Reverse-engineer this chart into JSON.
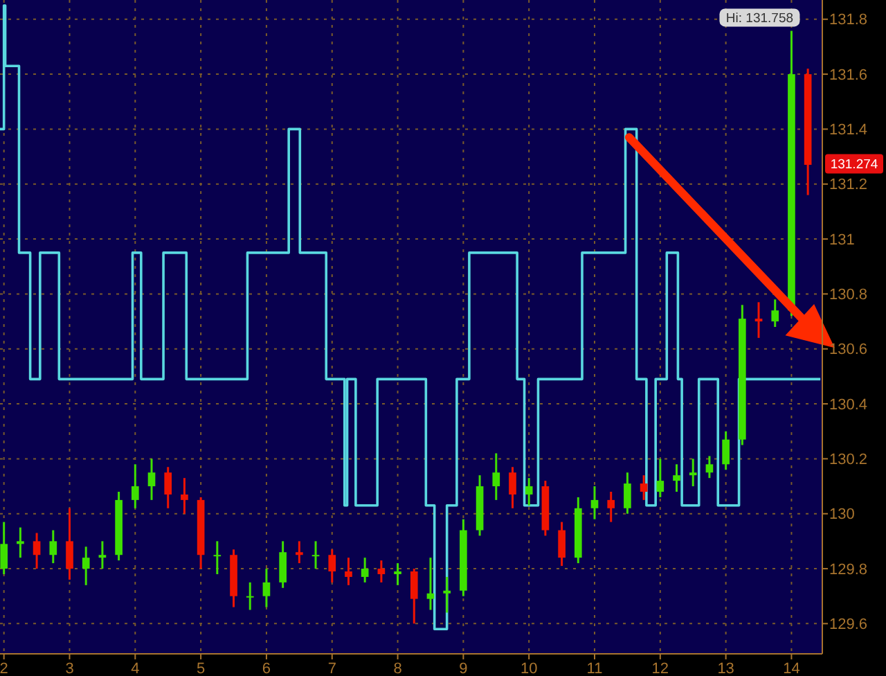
{
  "chart_data": {
    "type": "candlestick",
    "x": [
      2,
      2.25,
      2.5,
      2.75,
      3,
      3.25,
      3.5,
      3.75,
      4,
      4.25,
      4.5,
      4.75,
      5,
      5.25,
      5.5,
      5.75,
      6,
      6.25,
      6.5,
      6.75,
      7,
      7.25,
      7.5,
      7.75,
      8,
      8.25,
      8.5,
      8.75,
      9,
      9.25,
      9.5,
      9.75,
      10,
      10.25,
      10.5,
      10.75,
      11,
      11.25,
      11.5,
      11.75,
      12,
      12.25,
      12.5,
      12.75,
      13,
      13.25,
      13.5,
      13.75,
      14,
      14.25
    ],
    "ohlc": [
      [
        129.8,
        129.97,
        129.78,
        129.89
      ],
      [
        129.89,
        129.95,
        129.84,
        129.9
      ],
      [
        129.9,
        129.93,
        129.8,
        129.85
      ],
      [
        129.85,
        129.94,
        129.82,
        129.9
      ],
      [
        129.9,
        130.02,
        129.76,
        129.8
      ],
      [
        129.8,
        129.88,
        129.74,
        129.84
      ],
      [
        129.84,
        129.9,
        129.8,
        129.85
      ],
      [
        129.85,
        130.08,
        129.83,
        130.05
      ],
      [
        130.05,
        130.18,
        130.02,
        130.1
      ],
      [
        130.1,
        130.2,
        130.05,
        130.15
      ],
      [
        130.15,
        130.17,
        130.02,
        130.07
      ],
      [
        130.07,
        130.13,
        130.0,
        130.05
      ],
      [
        130.05,
        130.06,
        129.8,
        129.85
      ],
      [
        129.85,
        129.9,
        129.78,
        129.85
      ],
      [
        129.85,
        129.87,
        129.66,
        129.7
      ],
      [
        129.7,
        129.75,
        129.65,
        129.7
      ],
      [
        129.7,
        129.8,
        129.66,
        129.75
      ],
      [
        129.75,
        129.9,
        129.73,
        129.86
      ],
      [
        129.86,
        129.9,
        129.82,
        129.85
      ],
      [
        129.85,
        129.9,
        129.8,
        129.85
      ],
      [
        129.85,
        129.87,
        129.75,
        129.79
      ],
      [
        129.79,
        129.84,
        129.74,
        129.77
      ],
      [
        129.77,
        129.84,
        129.75,
        129.8
      ],
      [
        129.8,
        129.83,
        129.75,
        129.78
      ],
      [
        129.78,
        129.82,
        129.74,
        129.79
      ],
      [
        129.79,
        129.8,
        129.6,
        129.69
      ],
      [
        129.69,
        129.84,
        129.65,
        129.71
      ],
      [
        129.71,
        129.77,
        129.64,
        129.72
      ],
      [
        129.72,
        129.98,
        129.7,
        129.94
      ],
      [
        129.94,
        130.14,
        129.92,
        130.1
      ],
      [
        130.1,
        130.22,
        130.05,
        130.15
      ],
      [
        130.15,
        130.17,
        130.02,
        130.07
      ],
      [
        130.07,
        130.13,
        130.03,
        130.1
      ],
      [
        130.1,
        130.12,
        129.92,
        129.94
      ],
      [
        129.94,
        129.97,
        129.81,
        129.84
      ],
      [
        129.84,
        130.06,
        129.82,
        130.02
      ],
      [
        130.02,
        130.1,
        129.98,
        130.05
      ],
      [
        130.05,
        130.08,
        129.97,
        130.02
      ],
      [
        130.02,
        130.15,
        130.0,
        130.11
      ],
      [
        130.11,
        130.14,
        130.05,
        130.08
      ],
      [
        130.08,
        130.2,
        130.06,
        130.12
      ],
      [
        130.12,
        130.18,
        130.08,
        130.14
      ],
      [
        130.14,
        130.2,
        130.1,
        130.15
      ],
      [
        130.15,
        130.21,
        130.13,
        130.18
      ],
      [
        130.18,
        130.3,
        130.16,
        130.27
      ],
      [
        130.27,
        130.76,
        130.25,
        130.71
      ],
      [
        130.71,
        130.77,
        130.64,
        130.7
      ],
      [
        130.7,
        130.78,
        130.68,
        130.74
      ],
      [
        130.74,
        131.758,
        130.72,
        131.6
      ],
      [
        131.6,
        131.62,
        131.16,
        131.27
      ]
    ],
    "series": [
      {
        "type": "step",
        "color": "#5ad8e0",
        "x": [
          1.94,
          2.0,
          2.02,
          2.23,
          2.4,
          2.55,
          2.84,
          3.96,
          4.09,
          4.43,
          4.78,
          5.71,
          6.34,
          6.51,
          6.91,
          7.19,
          7.23,
          7.36,
          7.69,
          8.43,
          8.56,
          8.75,
          8.9,
          9.09,
          9.82,
          9.93,
          10.14,
          10.81,
          11.47,
          11.64,
          11.79,
          11.93,
          12.1,
          12.27,
          12.33,
          12.59,
          12.88,
          13.2,
          14.44
        ],
        "values": [
          131.4,
          131.85,
          131.63,
          130.95,
          130.49,
          130.95,
          130.49,
          130.95,
          130.49,
          130.95,
          130.49,
          130.95,
          131.4,
          130.95,
          130.49,
          130.03,
          130.49,
          130.03,
          130.49,
          130.03,
          129.58,
          130.03,
          130.49,
          130.95,
          130.49,
          130.03,
          130.49,
          130.95,
          131.4,
          130.49,
          130.03,
          130.49,
          130.95,
          130.49,
          130.03,
          130.49,
          130.03,
          130.49,
          130.49
        ]
      }
    ],
    "xlim": [
      1.94,
      14.47
    ],
    "xticks": [
      2,
      3,
      4,
      5,
      6,
      7,
      8,
      9,
      10,
      11,
      12,
      13,
      14
    ],
    "ylim": [
      129.49,
      131.87
    ],
    "yticks": [
      129.6,
      129.8,
      130,
      130.2,
      130.4,
      130.6,
      130.8,
      131,
      131.2,
      131.4,
      131.6,
      131.8
    ],
    "grid": true,
    "annotations": [
      {
        "text": "Hi: 131.758",
        "x": 14,
        "y": 131.758
      },
      {
        "text": "131.274",
        "y": 131.274
      }
    ]
  }
}
